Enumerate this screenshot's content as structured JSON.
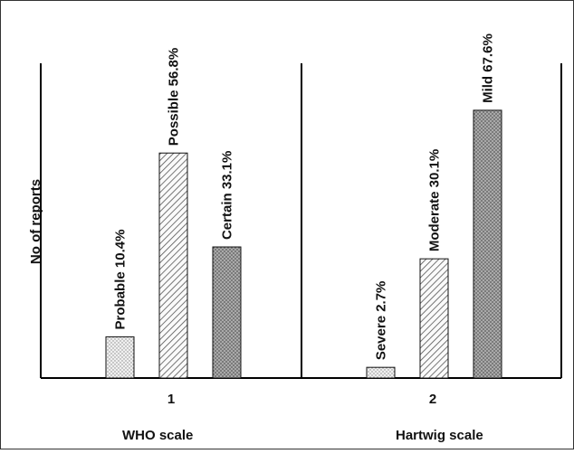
{
  "chart_data": {
    "type": "bar",
    "ylabel": "No of reports",
    "y_ticks_shown": false,
    "grid": false,
    "groups": [
      {
        "tick_label": "1",
        "scale_label": "WHO scale",
        "bars": [
          {
            "label": "Probable 10.4%",
            "value": 10.4,
            "color": "#e8e8e8",
            "pattern": "dots"
          },
          {
            "label": "Possible 56.8%",
            "value": 56.8,
            "color": "#f5f5f5",
            "pattern": "diagonal"
          },
          {
            "label": "Certain 33.1%",
            "value": 33.1,
            "color": "#7a7a7a",
            "pattern": "crosshatch"
          }
        ]
      },
      {
        "tick_label": "2",
        "scale_label": "Hartwig scale",
        "bars": [
          {
            "label": "Severe 2.7%",
            "value": 2.7,
            "color": "#e8e8e8",
            "pattern": "dots"
          },
          {
            "label": "Moderate 30.1%",
            "value": 30.1,
            "color": "#f5f5f5",
            "pattern": "diagonal"
          },
          {
            "label": "Mild 67.6%",
            "value": 67.6,
            "color": "#7a7a7a",
            "pattern": "crosshatch"
          }
        ]
      }
    ]
  }
}
